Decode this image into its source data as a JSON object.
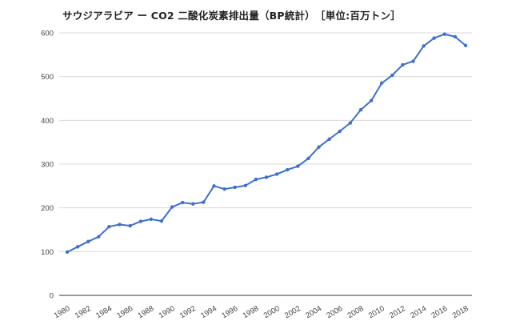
{
  "chart_data": {
    "type": "line",
    "title": "サウジアラビア ー CO2 二酸化炭素排出量（BP統計）　［単位:百万トン］",
    "xlabel": "",
    "ylabel": "",
    "ylim": [
      0,
      600
    ],
    "yticks": [
      0,
      100,
      200,
      300,
      400,
      500,
      600
    ],
    "xticks": [
      1980,
      1982,
      1984,
      1986,
      1988,
      1990,
      1992,
      1994,
      1996,
      1998,
      2000,
      2002,
      2004,
      2006,
      2008,
      2010,
      2012,
      2014,
      2016,
      2018
    ],
    "grid": true,
    "legend": "none",
    "color": "#3f6fd0",
    "series": [
      {
        "x": [
          1980,
          1981,
          1982,
          1983,
          1984,
          1985,
          1986,
          1987,
          1988,
          1989,
          1990,
          1991,
          1992,
          1993,
          1994,
          1995,
          1996,
          1997,
          1998,
          1999,
          2000,
          2001,
          2002,
          2003,
          2004,
          2005,
          2006,
          2007,
          2008,
          2009,
          2010,
          2011,
          2012,
          2013,
          2014,
          2015,
          2016,
          2017,
          2018
        ],
        "values": [
          99,
          111,
          123,
          134,
          157,
          162,
          159,
          169,
          174,
          170,
          202,
          212,
          209,
          213,
          250,
          243,
          247,
          251,
          265,
          270,
          277,
          287,
          295,
          313,
          339,
          357,
          375,
          394,
          424,
          445,
          485,
          503,
          527,
          535,
          570,
          588,
          597,
          591,
          571
        ]
      }
    ]
  }
}
